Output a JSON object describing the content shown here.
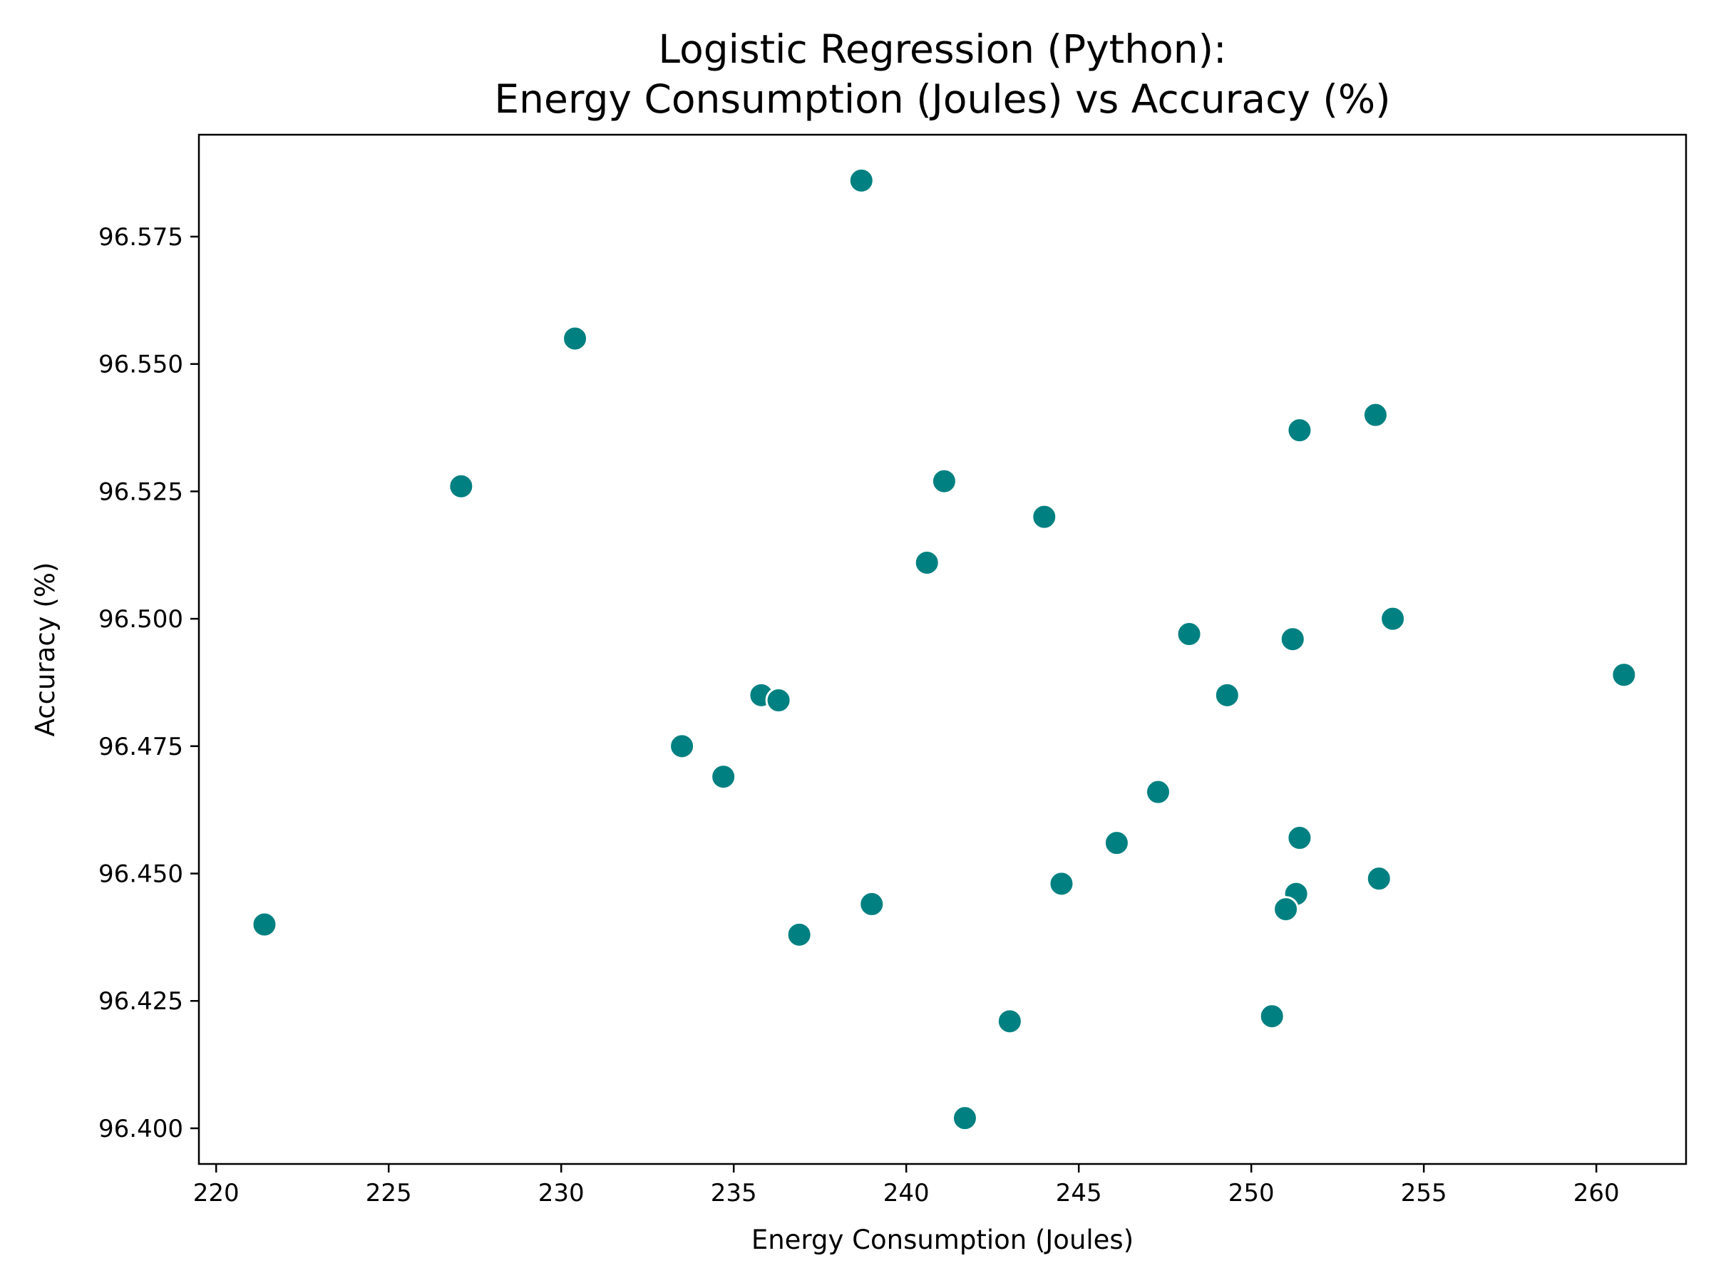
{
  "chart_data": {
    "type": "scatter",
    "title": "Logistic Regression (Python):",
    "subtitle": "Energy Consumption (Joules) vs Accuracy (%)",
    "xlabel": "Energy Consumption (Joules)",
    "ylabel": "Accuracy (%)",
    "xlim": [
      219.5,
      262.6
    ],
    "ylim": [
      96.393,
      96.595
    ],
    "xticks": [
      220,
      225,
      230,
      235,
      240,
      245,
      250,
      255,
      260
    ],
    "yticks": [
      96.4,
      96.425,
      96.45,
      96.475,
      96.5,
      96.525,
      96.55,
      96.575
    ],
    "xtick_labels": [
      "220",
      "225",
      "230",
      "235",
      "240",
      "245",
      "250",
      "255",
      "260"
    ],
    "ytick_labels": [
      "96.400",
      "96.425",
      "96.450",
      "96.475",
      "96.500",
      "96.525",
      "96.550",
      "96.575"
    ],
    "grid": false,
    "marker_color": "#008080",
    "points": [
      {
        "x": 238.7,
        "y": 96.586
      },
      {
        "x": 230.4,
        "y": 96.555
      },
      {
        "x": 253.6,
        "y": 96.54
      },
      {
        "x": 251.4,
        "y": 96.537
      },
      {
        "x": 227.1,
        "y": 96.526
      },
      {
        "x": 241.1,
        "y": 96.527
      },
      {
        "x": 244.0,
        "y": 96.52
      },
      {
        "x": 240.6,
        "y": 96.511
      },
      {
        "x": 254.1,
        "y": 96.5
      },
      {
        "x": 248.2,
        "y": 96.497
      },
      {
        "x": 251.2,
        "y": 96.496
      },
      {
        "x": 260.8,
        "y": 96.489
      },
      {
        "x": 235.8,
        "y": 96.485
      },
      {
        "x": 236.3,
        "y": 96.484
      },
      {
        "x": 249.3,
        "y": 96.485
      },
      {
        "x": 233.5,
        "y": 96.475
      },
      {
        "x": 234.7,
        "y": 96.469
      },
      {
        "x": 247.3,
        "y": 96.466
      },
      {
        "x": 251.4,
        "y": 96.457
      },
      {
        "x": 246.1,
        "y": 96.456
      },
      {
        "x": 253.7,
        "y": 96.449
      },
      {
        "x": 244.5,
        "y": 96.448
      },
      {
        "x": 251.3,
        "y": 96.446
      },
      {
        "x": 251.0,
        "y": 96.443
      },
      {
        "x": 239.0,
        "y": 96.444
      },
      {
        "x": 221.4,
        "y": 96.44
      },
      {
        "x": 236.9,
        "y": 96.438
      },
      {
        "x": 250.6,
        "y": 96.422
      },
      {
        "x": 243.0,
        "y": 96.421
      },
      {
        "x": 241.7,
        "y": 96.402
      }
    ]
  }
}
